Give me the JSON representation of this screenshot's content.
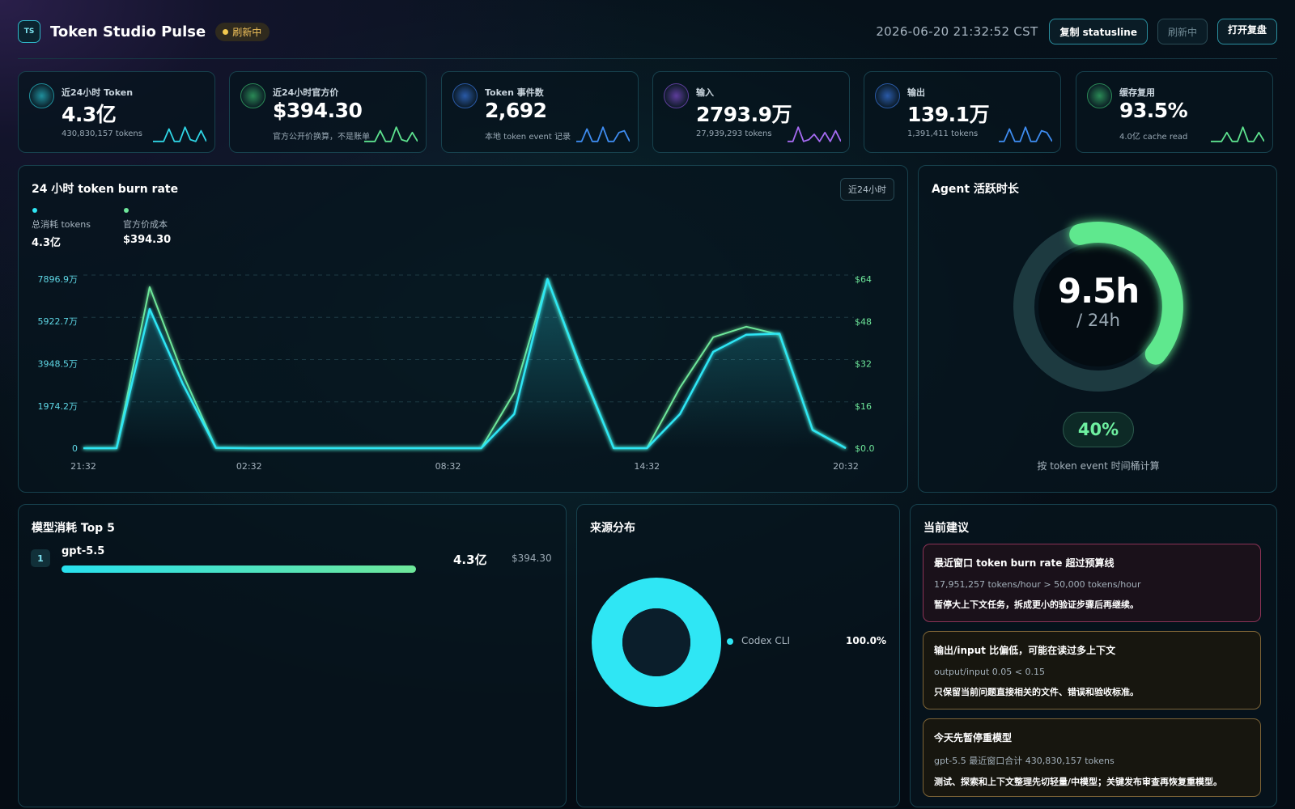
{
  "header": {
    "logo_text": "TS",
    "app_title": "Token Studio Pulse",
    "status_badge": "刷新中",
    "datetime": "2026-06-20 21:32:52 CST",
    "copy_button": "复制 statusline",
    "refresh_button": "刷新中",
    "review_button": "打开复盘"
  },
  "stats": [
    {
      "label": "近24小时 Token",
      "value": "4.3亿",
      "sub": "430,830,157 tokens",
      "color": "#2fd6e6",
      "orb": "#1f8f9c"
    },
    {
      "label": "近24小时官方价",
      "value": "$394.30",
      "sub": "官方公开价换算，不是账单",
      "color": "#5ee38f",
      "orb": "#2a8a56"
    },
    {
      "label": "Token 事件数",
      "value": "2,692",
      "sub": "本地 token event 记录",
      "color": "#3e8cf0",
      "orb": "#2a5aa8"
    },
    {
      "label": "输入",
      "value": "2793.9万",
      "sub": "27,939,293 tokens",
      "color": "#a66bf2",
      "orb": "#5e3d9c"
    },
    {
      "label": "输出",
      "value": "139.1万",
      "sub": "1,391,411 tokens",
      "color": "#3e8cf0",
      "orb": "#2a5aa8"
    },
    {
      "label": "缓存复用",
      "value": "93.5%",
      "sub": "4.0亿 cache read",
      "color": "#5ee38f",
      "orb": "#2a8a56"
    }
  ],
  "burn_chart": {
    "title": "24 小时 token burn rate",
    "range_chip": "近24小时",
    "legend": [
      {
        "label": "总消耗 tokens",
        "value": "4.3亿",
        "color": "#2fe6f4"
      },
      {
        "label": "官方价成本",
        "value": "$394.30",
        "color": "#6ee79a"
      }
    ]
  },
  "chart_data": {
    "type": "line",
    "title": "24 小时 token burn rate",
    "x": [
      "21:32",
      "22:32",
      "23:32",
      "00:32",
      "01:32",
      "02:32",
      "03:32",
      "04:32",
      "05:32",
      "06:32",
      "07:32",
      "08:32",
      "09:32",
      "10:32",
      "11:32",
      "12:32",
      "13:32",
      "14:32",
      "15:32",
      "16:32",
      "17:32",
      "18:32",
      "19:32",
      "20:32"
    ],
    "x_ticks": [
      "21:32",
      "02:32",
      "08:32",
      "14:32",
      "20:32"
    ],
    "y_left_ticks": [
      "0",
      "1974.2万",
      "3948.5万",
      "5922.7万",
      "7896.9万"
    ],
    "y_left_ticks_values": [
      0,
      1974.2,
      3948.5,
      5922.7,
      7896.9
    ],
    "y_right_ticks": [
      "$0.0",
      "$16",
      "$32",
      "$48",
      "$64"
    ],
    "y_right_ticks_values": [
      0,
      16,
      32,
      48,
      64
    ],
    "y_left_unit": "万 tokens",
    "ylim_left": [
      0,
      7896.9
    ],
    "ylim_right": [
      0,
      64
    ],
    "series": [
      {
        "name": "总消耗 tokens",
        "axis": "left",
        "color": "#2fe6f4",
        "values": [
          0,
          0,
          6500,
          3000,
          20,
          0,
          0,
          0,
          0,
          0,
          0,
          0,
          0,
          1600,
          7900,
          3800,
          0,
          0,
          1600,
          4500,
          5300,
          5350,
          850,
          0
        ]
      },
      {
        "name": "官方价成本",
        "axis": "right",
        "color": "#6ee79a",
        "values": [
          0,
          0,
          61,
          28,
          0.1,
          0,
          0,
          0,
          0,
          0,
          0,
          0,
          0,
          21,
          64,
          30,
          0,
          0,
          23,
          42,
          46,
          43,
          7,
          0
        ]
      }
    ],
    "grid": true
  },
  "agent_panel": {
    "title": "Agent 活跃时长",
    "hours_value": "9.5h",
    "hours_total": "/ 24h",
    "active_fraction": 0.4,
    "percent_label": "40%",
    "caption": "按 token event 时间桶计算"
  },
  "models_panel": {
    "title": "模型消耗 Top 5",
    "items": [
      {
        "rank": "1",
        "name": "gpt-5.5",
        "tokens": "4.3亿",
        "cost": "$394.30",
        "share": 1.0
      }
    ]
  },
  "source_panel": {
    "title": "来源分布",
    "items": [
      {
        "label": "Codex CLI",
        "percent": "100.0%",
        "share": 1.0,
        "color": "#2fe6f4"
      }
    ]
  },
  "advice_panel": {
    "title": "当前建议",
    "items": [
      {
        "title": "最近窗口 token burn rate 超过预算线",
        "metric": "17,951,257 tokens/hour > 50,000 tokens/hour",
        "action": "暂停大上下文任务，拆成更小的验证步骤后再继续。",
        "tone": "#b0466a"
      },
      {
        "title": "输出/input 比偏低，可能在读过多上下文",
        "metric": "output/input 0.05 < 0.15",
        "action": "只保留当前问题直接相关的文件、错误和验收标准。",
        "tone": "#a8864a"
      },
      {
        "title": "今天先暂停重模型",
        "metric": "gpt-5.5 最近窗口合计 430,830,157 tokens",
        "action": "测试、探索和上下文整理先切轻量/中模型；关键发布审查再恢复重模型。",
        "tone": "#a8864a"
      }
    ]
  }
}
